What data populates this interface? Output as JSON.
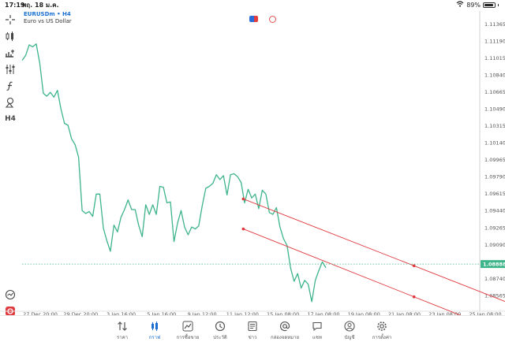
{
  "status": {
    "time": "17:19",
    "date": "พฤ. 18 ม.ค.",
    "battery": "89%",
    "battery_level": 0.89
  },
  "symbol": {
    "name": "EURUSDm • H4",
    "description": "Euro vs US Dollar"
  },
  "toolbar": {
    "timeframe": "H4"
  },
  "chart_data": {
    "type": "line",
    "y_ticks": [
      "1.11365",
      "1.11190",
      "1.11015",
      "1.10840",
      "1.10665",
      "1.10490",
      "1.10315",
      "1.10140",
      "1.09965",
      "1.09790",
      "1.09615",
      "1.09440",
      "1.09265",
      "1.09090",
      "1.08740",
      "1.08565"
    ],
    "current_price": "1.08888",
    "x_ticks": [
      "27 Dec 20:00",
      "29 Dec 20:00",
      "3 Jan 16:00",
      "5 Jan 16:00",
      "9 Jan 12:00",
      "11 Jan 12:00",
      "15 Jan 08:00",
      "17 Jan 08:00",
      "19 Jan 08:00",
      "21 Jan 08:00",
      "23 Jan 08:00",
      "25 Jan 08:00"
    ],
    "ylim": [
      1.0845,
      1.1145
    ],
    "line_color": "#3db489",
    "close_values": [
      1.1099,
      1.1104,
      1.1115,
      1.1113,
      1.1116,
      1.1096,
      1.1065,
      1.1062,
      1.1066,
      1.1061,
      1.1068,
      1.1049,
      1.1034,
      1.1032,
      1.1018,
      1.1012,
      1.0999,
      1.0944,
      1.0941,
      1.0943,
      1.0938,
      1.0961,
      1.0961,
      1.0926,
      1.0913,
      1.0902,
      1.0929,
      1.0922,
      1.0937,
      1.0945,
      1.0955,
      1.0945,
      1.0945,
      1.0929,
      1.0917,
      1.095,
      1.094,
      1.095,
      1.094,
      1.0969,
      1.0968,
      1.0952,
      1.0953,
      1.0912,
      1.0931,
      1.0944,
      1.0927,
      1.0919,
      1.0927,
      1.0925,
      1.0928,
      1.0949,
      1.0967,
      1.0969,
      1.0972,
      1.0981,
      1.0976,
      1.098,
      1.096,
      1.0981,
      1.0982,
      1.0979,
      1.0973,
      1.0952,
      1.0966,
      1.0957,
      1.0961,
      1.0946,
      1.0965,
      1.0961,
      1.0942,
      1.094,
      1.0947,
      1.0927,
      1.0915,
      1.0908,
      1.0885,
      1.0871,
      1.0879,
      1.0864,
      1.0872,
      1.0868,
      1.085,
      1.0872,
      1.0882,
      1.0891,
      1.0885
    ],
    "trendlines": [
      {
        "color": "#e0393e",
        "points": [
          [
            1.0956,
            0.292
          ],
          [
            1.0887,
            0.665
          ]
        ]
      },
      {
        "color": "#e0393e",
        "points": [
          [
            1.0925,
            0.292
          ],
          [
            1.0855,
            0.665
          ]
        ]
      }
    ]
  },
  "tabs": [
    {
      "label": "ราคา",
      "icon": "arrows-updown-icon",
      "active": false
    },
    {
      "label": "กราฟ",
      "icon": "candles-icon",
      "active": true
    },
    {
      "label": "การซื้อขาย",
      "icon": "trend-icon",
      "active": false
    },
    {
      "label": "ประวัติ",
      "icon": "history-icon",
      "active": false
    },
    {
      "label": "ข่าว",
      "icon": "news-icon",
      "active": false
    },
    {
      "label": "กล่องจดหมาย",
      "icon": "at-icon",
      "active": false
    },
    {
      "label": "แชท",
      "icon": "chat-icon",
      "active": false
    },
    {
      "label": "บัญชี",
      "icon": "user-icon",
      "active": false
    },
    {
      "label": "การตั้งค่า",
      "icon": "gear-icon",
      "active": false
    }
  ]
}
